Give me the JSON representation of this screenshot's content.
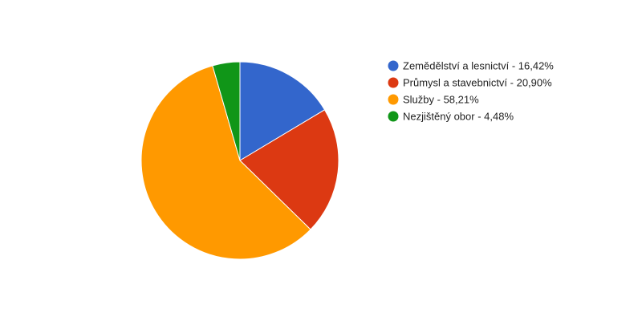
{
  "chart_data": {
    "type": "pie",
    "title": "",
    "slices": [
      {
        "label": "Zemědělství a lesnictví - 16,42%",
        "value": 16.42,
        "color": "#3366cc"
      },
      {
        "label": "Průmysl a stavebnictví - 20,90%",
        "value": 20.9,
        "color": "#dc3912"
      },
      {
        "label": "Služby - 58,21%",
        "value": 58.21,
        "color": "#ff9900"
      },
      {
        "label": "Nezjištěný obor - 4,48%",
        "value": 4.48,
        "color": "#109618"
      }
    ],
    "start_angle_deg": 0,
    "direction": "clockwise",
    "legend_position": "right"
  }
}
